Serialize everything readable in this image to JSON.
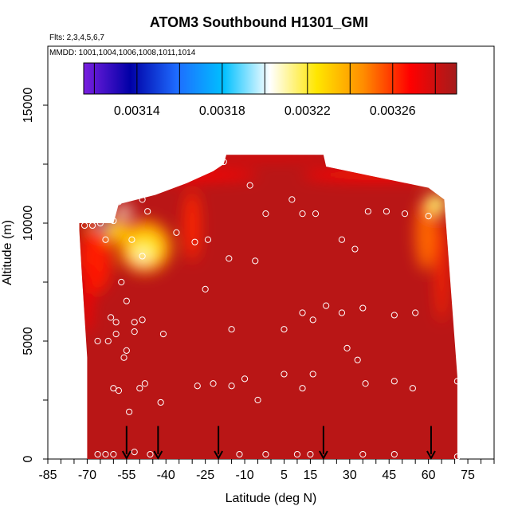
{
  "chart_data": {
    "type": "heatmap",
    "title": "ATOM3 Southbound H1301_GMI",
    "subtitle_flights": "Flts: 2,3,4,5,6,7",
    "subtitle_dates": "MMDD: 1001,1004,1006,1008,1011,1014",
    "xlabel": "Latitude (deg N)",
    "ylabel": "Altitude (m)",
    "xlim": [
      -85,
      85
    ],
    "ylim": [
      0,
      17500
    ],
    "x_tick_labels": [
      "-85",
      "-70",
      "-55",
      "-40",
      "-25",
      "-10",
      "5",
      "15",
      "30",
      "45",
      "60",
      "75"
    ],
    "x_tick_values": [
      -85,
      -70,
      -55,
      -40,
      -25,
      -10,
      5,
      15,
      30,
      45,
      60,
      75
    ],
    "y_tick_labels": [
      "0",
      "5000",
      "10000",
      "15000"
    ],
    "y_tick_values": [
      0,
      5000,
      10000,
      15000
    ],
    "colorbar": {
      "range": [
        0.003115,
        0.00329
      ],
      "tick_values": [
        0.00314,
        0.00318,
        0.00322,
        0.00326
      ],
      "tick_labels": [
        "0.00314",
        "0.00318",
        "0.00322",
        "0.00326"
      ],
      "colors": [
        "#7a1fe0",
        "#0000a6",
        "#1e6cff",
        "#00c0ff",
        "#ffffff",
        "#ffe600",
        "#ff8c00",
        "#ff0000",
        "#a41c1c"
      ]
    },
    "background_value": 0.003285,
    "grid": false,
    "flight_markers_lat": [
      -55,
      -43,
      -20,
      20,
      61
    ],
    "samples": [
      {
        "lat": -66,
        "alt": 200
      },
      {
        "lat": -63,
        "alt": 200
      },
      {
        "lat": -60,
        "alt": 200
      },
      {
        "lat": -52,
        "alt": 300
      },
      {
        "lat": -46,
        "alt": 200
      },
      {
        "lat": -12,
        "alt": 200
      },
      {
        "lat": -2,
        "alt": 200
      },
      {
        "lat": 10,
        "alt": 200
      },
      {
        "lat": 15,
        "alt": 200
      },
      {
        "lat": 35,
        "alt": 200
      },
      {
        "lat": 47,
        "alt": 200
      },
      {
        "lat": 71,
        "alt": 100
      },
      {
        "lat": -60,
        "alt": 3000
      },
      {
        "lat": -58,
        "alt": 2900
      },
      {
        "lat": -54,
        "alt": 2000
      },
      {
        "lat": -50,
        "alt": 3000
      },
      {
        "lat": -48,
        "alt": 3200
      },
      {
        "lat": -42,
        "alt": 2400
      },
      {
        "lat": -28,
        "alt": 3100
      },
      {
        "lat": -22,
        "alt": 3200
      },
      {
        "lat": -15,
        "alt": 3100
      },
      {
        "lat": -10,
        "alt": 3400
      },
      {
        "lat": -5,
        "alt": 2500
      },
      {
        "lat": 5,
        "alt": 3600
      },
      {
        "lat": 12,
        "alt": 3000
      },
      {
        "lat": 16,
        "alt": 3600
      },
      {
        "lat": 33,
        "alt": 4200
      },
      {
        "lat": 36,
        "alt": 3200
      },
      {
        "lat": 47,
        "alt": 3300
      },
      {
        "lat": 54,
        "alt": 3000
      },
      {
        "lat": 71,
        "alt": 3300
      },
      {
        "lat": -62,
        "alt": 5000
      },
      {
        "lat": -59,
        "alt": 5300
      },
      {
        "lat": -56,
        "alt": 4300
      },
      {
        "lat": -55,
        "alt": 4600
      },
      {
        "lat": -52,
        "alt": 5400
      },
      {
        "lat": -41,
        "alt": 5300
      },
      {
        "lat": -15,
        "alt": 5500
      },
      {
        "lat": 5,
        "alt": 5500
      },
      {
        "lat": 29,
        "alt": 4700
      },
      {
        "lat": -66,
        "alt": 5000
      },
      {
        "lat": -61,
        "alt": 6000
      },
      {
        "lat": -59,
        "alt": 5800
      },
      {
        "lat": -52,
        "alt": 5800
      },
      {
        "lat": -49,
        "alt": 5900
      },
      {
        "lat": 12,
        "alt": 6200
      },
      {
        "lat": 16,
        "alt": 5900
      },
      {
        "lat": 21,
        "alt": 6500
      },
      {
        "lat": 27,
        "alt": 6200
      },
      {
        "lat": 35,
        "alt": 6400
      },
      {
        "lat": 47,
        "alt": 6100
      },
      {
        "lat": 55,
        "alt": 6200
      },
      {
        "lat": -55,
        "alt": 6700
      },
      {
        "lat": -25,
        "alt": 7200
      },
      {
        "lat": -57,
        "alt": 7500
      },
      {
        "lat": -16,
        "alt": 8500
      },
      {
        "lat": -6,
        "alt": 8400
      },
      {
        "lat": -49,
        "alt": 8600
      },
      {
        "lat": -53,
        "alt": 9300
      },
      {
        "lat": -63,
        "alt": 9300
      },
      {
        "lat": -29,
        "alt": 9200
      },
      {
        "lat": -24,
        "alt": 9300
      },
      {
        "lat": 27,
        "alt": 9300
      },
      {
        "lat": 32,
        "alt": 8900
      },
      {
        "lat": -36,
        "alt": 9600
      },
      {
        "lat": -71,
        "alt": 9900
      },
      {
        "lat": -68,
        "alt": 9900
      },
      {
        "lat": -65,
        "alt": 10000
      },
      {
        "lat": -63,
        "alt": 10200
      },
      {
        "lat": -61,
        "alt": 10500
      },
      {
        "lat": -47,
        "alt": 10500
      },
      {
        "lat": -2,
        "alt": 10400
      },
      {
        "lat": 12,
        "alt": 10400
      },
      {
        "lat": 17,
        "alt": 10400
      },
      {
        "lat": 37,
        "alt": 10500
      },
      {
        "lat": 44,
        "alt": 10500
      },
      {
        "lat": 51,
        "alt": 10400
      },
      {
        "lat": 60,
        "alt": 10300
      },
      {
        "lat": -58,
        "alt": 10900
      },
      {
        "lat": -49,
        "alt": 11000
      },
      {
        "lat": 8,
        "alt": 11000
      },
      {
        "lat": -8,
        "alt": 11600
      },
      {
        "lat": -18,
        "alt": 12600
      },
      {
        "lat": 23,
        "alt": 12500
      },
      {
        "lat": -60,
        "alt": 10100
      }
    ]
  }
}
